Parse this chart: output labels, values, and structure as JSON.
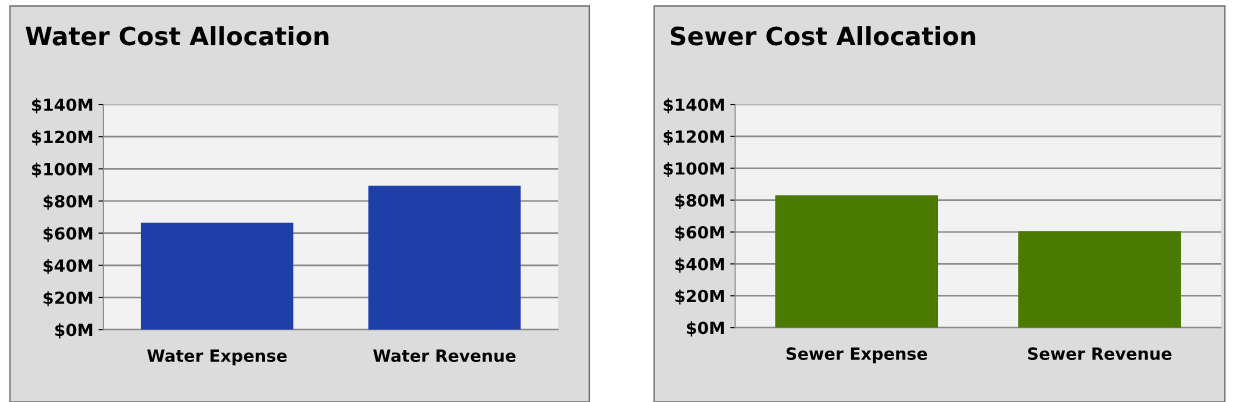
{
  "chart_data": [
    {
      "type": "bar",
      "title": "Water Cost Allocation",
      "categories": [
        "Water Expense",
        "Water Revenue"
      ],
      "values": [
        66.5,
        89.5
      ],
      "color": "#1e3fa8",
      "ylim": [
        0,
        140
      ],
      "yticks": [
        {
          "value": 0,
          "label": "$0M"
        },
        {
          "value": 20,
          "label": "$20M"
        },
        {
          "value": 40,
          "label": "$40M"
        },
        {
          "value": 60,
          "label": "$60M"
        },
        {
          "value": 80,
          "label": "$80M"
        },
        {
          "value": 100,
          "label": "$100M"
        },
        {
          "value": 120,
          "label": "$120M"
        },
        {
          "value": 140,
          "label": "$140M"
        }
      ],
      "grid": "y",
      "legend": false
    },
    {
      "type": "bar",
      "title": "Sewer Cost Allocation",
      "categories": [
        "Sewer Expense",
        "Sewer Revenue"
      ],
      "values": [
        83,
        60.5
      ],
      "color": "#4a7a00",
      "ylim": [
        0,
        140
      ],
      "yticks": [
        {
          "value": 0,
          "label": "$0M"
        },
        {
          "value": 20,
          "label": "$20M"
        },
        {
          "value": 40,
          "label": "$40M"
        },
        {
          "value": 60,
          "label": "$60M"
        },
        {
          "value": 80,
          "label": "$80M"
        },
        {
          "value": 100,
          "label": "$100M"
        },
        {
          "value": 120,
          "label": "$120M"
        },
        {
          "value": 140,
          "label": "$140M"
        }
      ],
      "grid": "y",
      "legend": false
    }
  ]
}
